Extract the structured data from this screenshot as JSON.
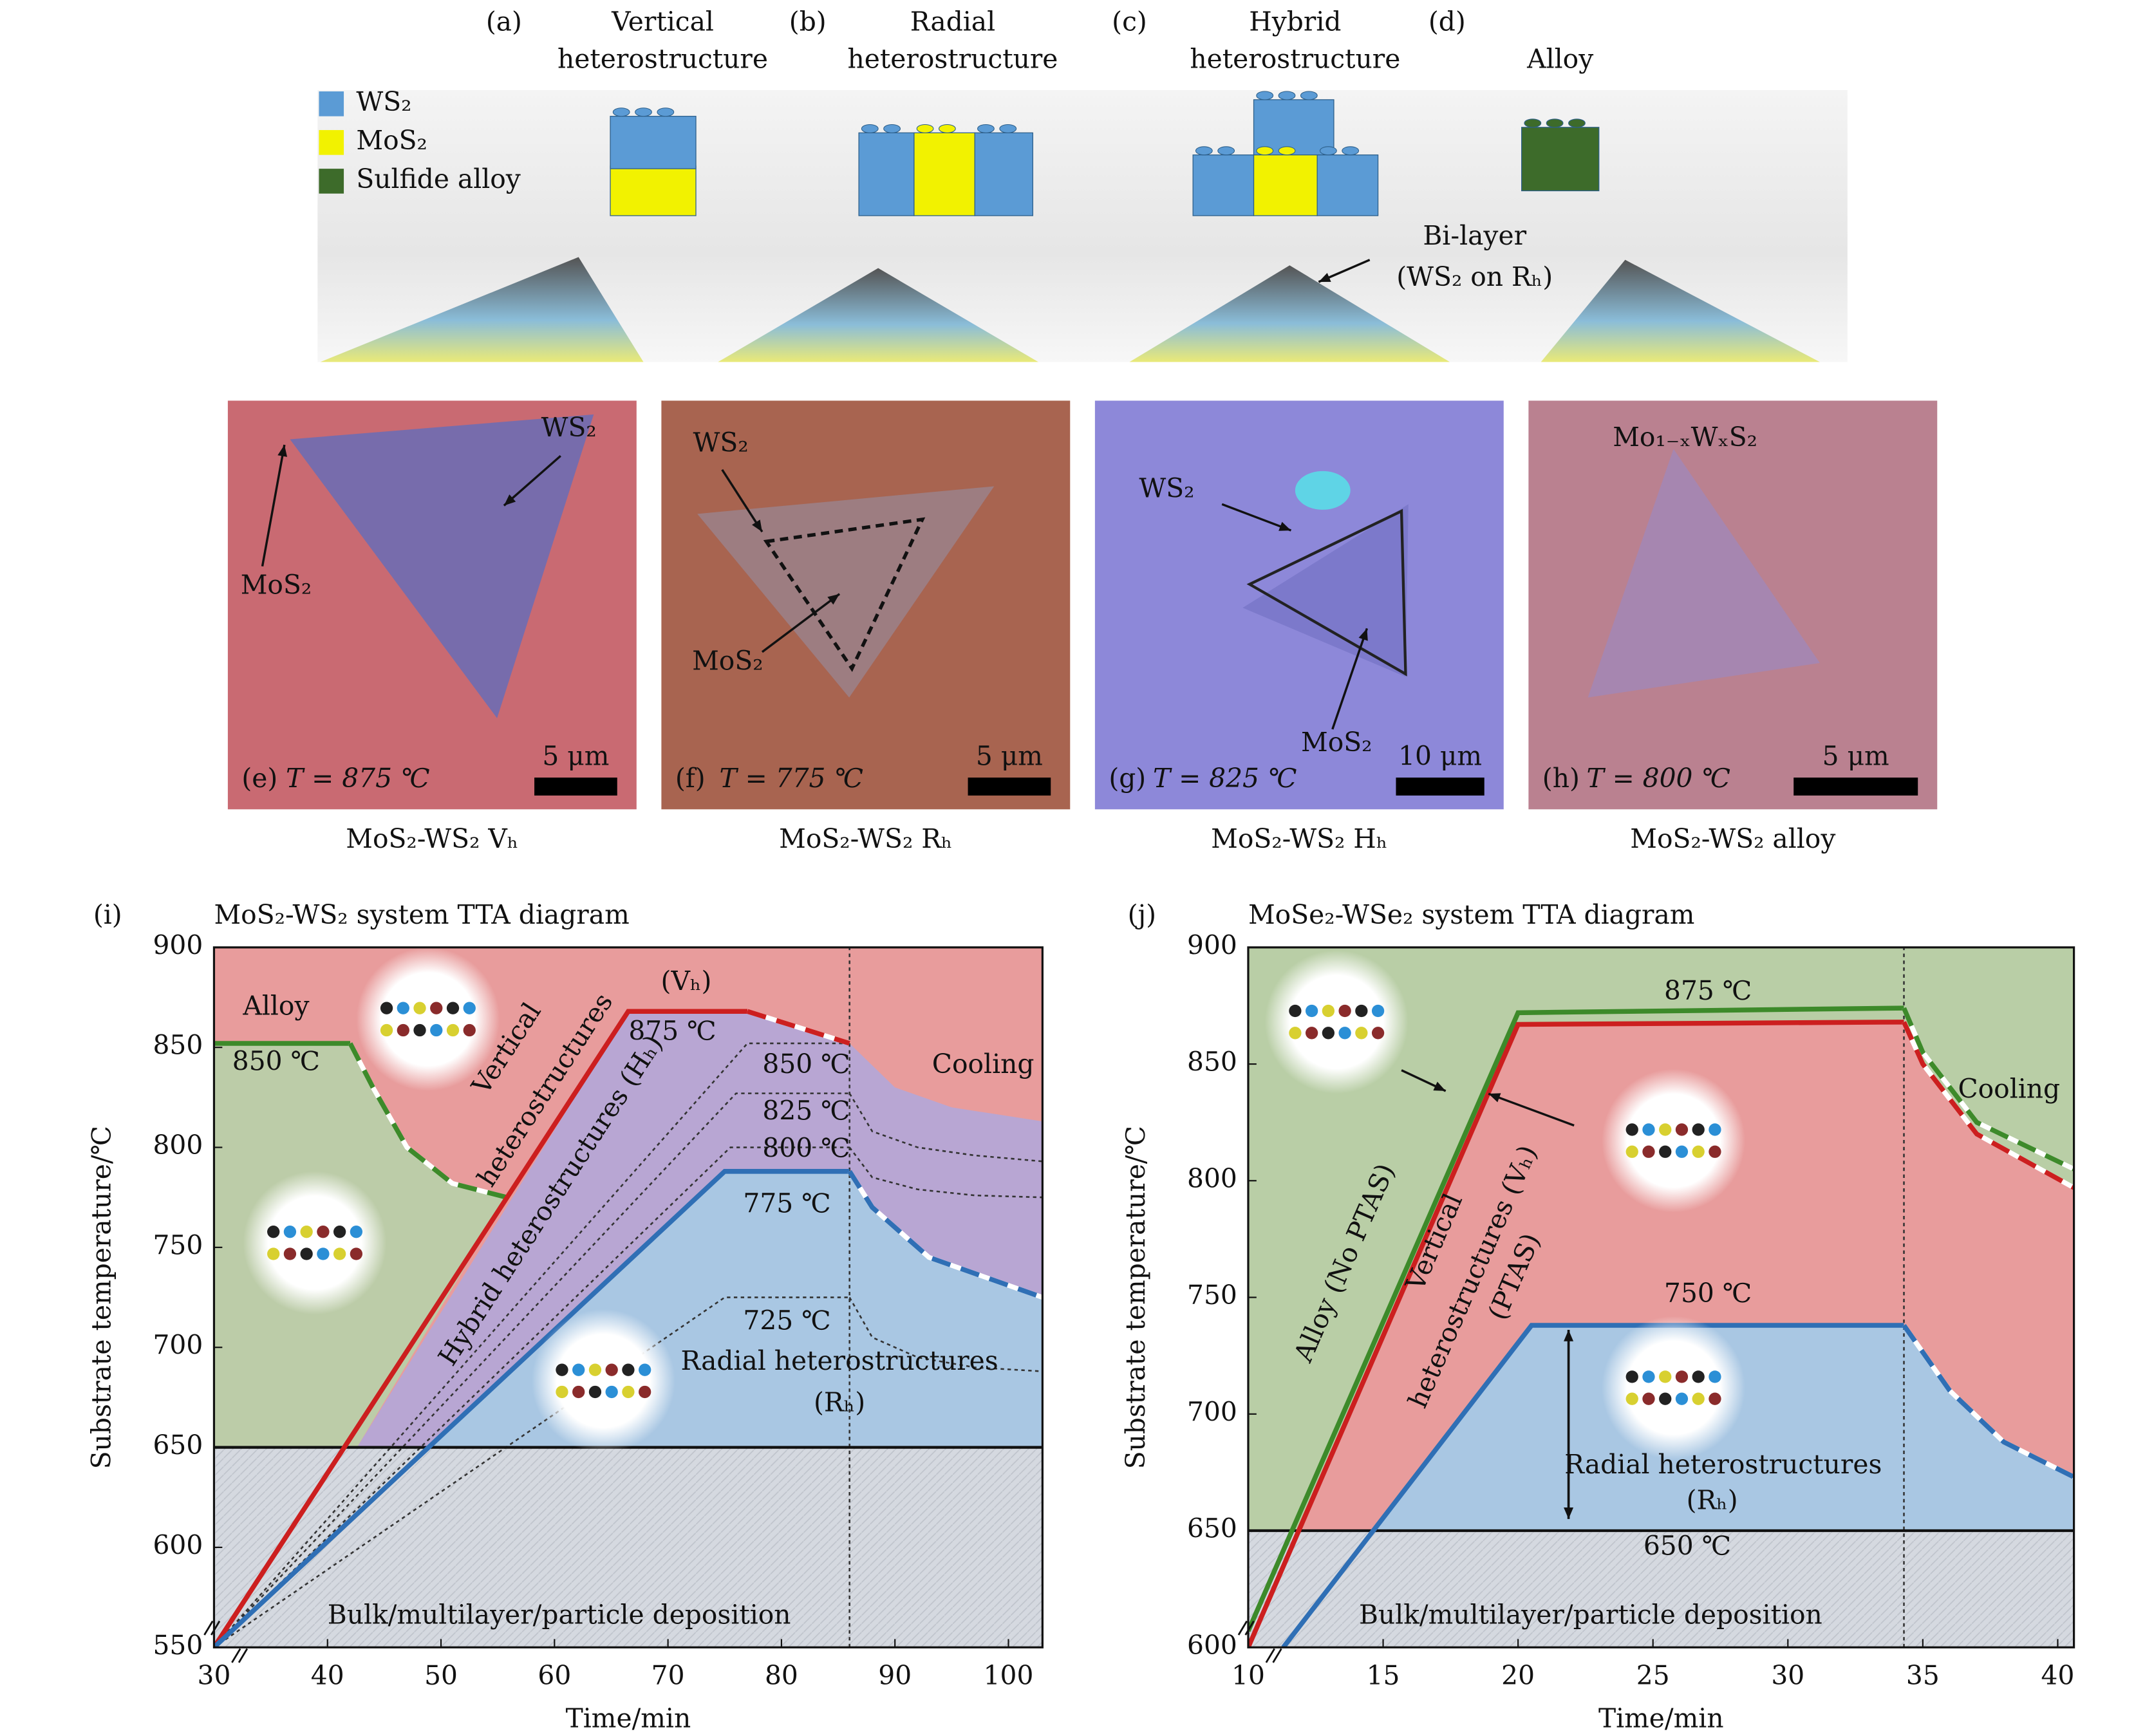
{
  "schematic": {
    "panels": [
      {
        "letter": "(a)",
        "title": [
          "Vertical",
          "heterostructure"
        ]
      },
      {
        "letter": "(b)",
        "title": [
          "Radial",
          "heterostructure"
        ]
      },
      {
        "letter": "(c)",
        "title": [
          "Hybrid",
          "heterostructure"
        ]
      },
      {
        "letter": "(d)",
        "title": [
          "Alloy"
        ]
      }
    ],
    "legend": [
      {
        "label": "WS₂",
        "color": "#5b9bd5"
      },
      {
        "label": "MoS₂",
        "color": "#f2f200"
      },
      {
        "label": "Sulfide alloy",
        "color": "#3d6b2a"
      }
    ],
    "annotation": [
      "Bi-layer",
      "(WS₂ on Rₕ)"
    ]
  },
  "micrographs": [
    {
      "panel": "(e)",
      "temperature": "T = 875 ℃",
      "scale": "5 μm",
      "caption": "MoS₂-WS₂ Vₕ",
      "labels": [
        "WS₂",
        "MoS₂"
      ]
    },
    {
      "panel": "(f)",
      "temperature": "T = 775 ℃",
      "scale": "5 μm",
      "caption": "MoS₂-WS₂ Rₕ",
      "labels": [
        "WS₂",
        "MoS₂"
      ]
    },
    {
      "panel": "(g)",
      "temperature": "T = 825 ℃",
      "scale": "10 μm",
      "caption": "MoS₂-WS₂ Hₕ",
      "labels": [
        "WS₂",
        "MoS₂"
      ]
    },
    {
      "panel": "(h)",
      "temperature": "T = 800 ℃",
      "scale": "5 μm",
      "caption": "MoS₂-WS₂ alloy",
      "labels": [
        "Mo₁₋ₓWₓS₂"
      ]
    }
  ],
  "chart_data": [
    {
      "type": "line",
      "label": "(i)",
      "title": "MoS₂-WS₂ system TTA diagram",
      "xlabel": "Time/min",
      "ylabel": "Substrate temperature/℃",
      "xlim": [
        30,
        103
      ],
      "ylim": [
        550,
        900
      ],
      "xticks": [
        30,
        40,
        50,
        60,
        70,
        80,
        90,
        100
      ],
      "yticks": [
        550,
        600,
        650,
        700,
        750,
        800,
        850,
        900
      ],
      "regions": [
        {
          "color": "#e89c9c",
          "x": [
            30,
            103,
            103,
            30
          ],
          "values": [
            650,
            650,
            900,
            900
          ]
        },
        {
          "color": "#bccca8",
          "x": [
            30,
            30,
            42,
            44,
            47,
            51,
            55.8,
            42.6
          ],
          "values": [
            650,
            852,
            852,
            830,
            800,
            782,
            775,
            650
          ]
        },
        {
          "color": "#b8a6d3",
          "x": [
            42.6,
            66.5,
            77,
            86,
            90,
            95,
            103,
            103,
            93,
            88,
            86,
            75,
            48.9
          ],
          "values": [
            650,
            868,
            868,
            852,
            830,
            820,
            813,
            725,
            745,
            770,
            788,
            788,
            650
          ]
        },
        {
          "color": "#a9c7e3",
          "x": [
            48.9,
            75,
            86,
            88,
            93,
            103,
            103
          ],
          "values": [
            650,
            788,
            788,
            770,
            745,
            725,
            650
          ]
        },
        {
          "color": "#d5d9e0",
          "x": [
            30,
            103,
            103,
            30
          ],
          "values": [
            550,
            550,
            650,
            650
          ]
        }
      ],
      "series": [
        {
          "color": "#333333",
          "style": "dotted",
          "x": [
            30,
            77,
            86
          ],
          "values": [
            550,
            852,
            852
          ]
        },
        {
          "color": "#333333",
          "style": "dotted",
          "x": [
            30,
            76,
            86
          ],
          "values": [
            550,
            827,
            827
          ]
        },
        {
          "color": "#333333",
          "style": "dotted",
          "x": [
            30,
            75.5,
            86
          ],
          "values": [
            550,
            800,
            800
          ]
        },
        {
          "color": "#333333",
          "style": "dotted",
          "x": [
            30,
            75,
            86
          ],
          "values": [
            550,
            725,
            725
          ]
        },
        {
          "color": "#333333",
          "style": "dotted",
          "x": [
            86,
            88,
            92,
            97,
            103
          ],
          "values": [
            827,
            808,
            800,
            796,
            793
          ]
        },
        {
          "color": "#333333",
          "style": "dotted",
          "x": [
            86,
            88,
            92,
            97,
            103
          ],
          "values": [
            800,
            785,
            779,
            776,
            775
          ]
        },
        {
          "color": "#333333",
          "style": "dotted",
          "x": [
            86,
            88,
            92,
            97,
            103
          ],
          "values": [
            725,
            705,
            695,
            690,
            688
          ]
        },
        {
          "color": "#333333",
          "style": "dotted",
          "x": [
            86,
            86
          ],
          "values": [
            550,
            900
          ]
        },
        {
          "color": "#111111",
          "style": "solid",
          "x": [
            30,
            103
          ],
          "values": [
            650,
            650
          ]
        },
        {
          "color": "#3d8a2a",
          "style": "solid",
          "x": [
            30,
            42
          ],
          "values": [
            852,
            852
          ]
        },
        {
          "color": "#3d8a2a",
          "style": "dashed",
          "x": [
            42,
            44,
            47,
            51,
            55.8
          ],
          "values": [
            852,
            830,
            800,
            782,
            775
          ]
        },
        {
          "color": "#cc1f1f",
          "style": "solid",
          "x": [
            30,
            66.5,
            77
          ],
          "values": [
            550,
            868,
            868
          ]
        },
        {
          "color": "#cc1f1f",
          "style": "dashed",
          "x": [
            77,
            86
          ],
          "values": [
            868,
            852
          ]
        },
        {
          "color": "#2f6fb5",
          "style": "solid",
          "x": [
            30,
            75,
            86
          ],
          "values": [
            550,
            788,
            788
          ]
        },
        {
          "color": "#2f6fb5",
          "style": "dashed",
          "x": [
            86,
            88,
            93,
            103
          ],
          "values": [
            788,
            770,
            745,
            725
          ]
        }
      ],
      "annotations": [
        "Alloy",
        "850 ℃",
        "Vertical",
        "heterostructures",
        "(Vₕ)",
        "875 ℃",
        "850 ℃",
        "825 ℃",
        "800 ℃",
        "775 ℃",
        "725 ℃",
        "Hybrid heterostructures (Hₕ)",
        "Cooling",
        "Radial heterostructures",
        "(Rₕ)",
        "Bulk/multilayer/particle deposition"
      ]
    },
    {
      "type": "line",
      "label": "(j)",
      "title": "MoSe₂-WSe₂ system TTA diagram",
      "xlabel": "Time/min",
      "ylabel": "Substrate temperature/℃",
      "xlim": [
        10,
        40.6
      ],
      "ylim": [
        600,
        900
      ],
      "xticks": [
        10,
        15,
        20,
        25,
        30,
        35,
        40
      ],
      "yticks": [
        600,
        650,
        700,
        750,
        800,
        850,
        900
      ],
      "regions": [
        {
          "color": "#b9cea6",
          "x": [
            10,
            40.6,
            40.6,
            10
          ],
          "values": [
            650,
            650,
            900,
            900
          ]
        },
        {
          "color": "#e89c9c",
          "x": [
            11.9,
            20,
            34.3,
            35,
            37,
            40.6,
            40.6
          ],
          "values": [
            650,
            867,
            868,
            850,
            820,
            797,
            650
          ]
        },
        {
          "color": "#a9c7e3",
          "x": [
            14.6,
            20.5,
            34.3,
            36,
            38,
            40.6,
            40.6
          ],
          "values": [
            650,
            738,
            738,
            710,
            688,
            673,
            650
          ]
        },
        {
          "color": "#d5d9e0",
          "x": [
            10,
            40.6,
            40.6,
            10
          ],
          "values": [
            600,
            600,
            650,
            650
          ]
        }
      ],
      "series": [
        {
          "color": "#333333",
          "style": "dotted",
          "x": [
            34.3,
            34.3
          ],
          "values": [
            600,
            900
          ]
        },
        {
          "color": "#111111",
          "style": "solid",
          "x": [
            10,
            40.6
          ],
          "values": [
            650,
            650
          ]
        },
        {
          "color": "#3d8a2a",
          "style": "solid",
          "x": [
            10,
            20,
            34.3
          ],
          "values": [
            607,
            872,
            874
          ]
        },
        {
          "color": "#3d8a2a",
          "style": "dashed",
          "x": [
            34.3,
            35,
            37,
            40.6
          ],
          "values": [
            874,
            855,
            825,
            805
          ]
        },
        {
          "color": "#cc1f1f",
          "style": "solid",
          "x": [
            10,
            20,
            34.3
          ],
          "values": [
            600,
            867,
            868
          ]
        },
        {
          "color": "#cc1f1f",
          "style": "dashed",
          "x": [
            34.3,
            35,
            37,
            40.6
          ],
          "values": [
            868,
            850,
            820,
            797
          ]
        },
        {
          "color": "#2f6fb5",
          "style": "solid",
          "x": [
            11.3,
            20.5,
            34.3
          ],
          "values": [
            600,
            738,
            738
          ]
        },
        {
          "color": "#2f6fb5",
          "style": "dashed",
          "x": [
            34.3,
            36,
            38,
            40.6
          ],
          "values": [
            738,
            710,
            688,
            673
          ]
        }
      ],
      "annotations": [
        "875 ℃",
        "Cooling",
        "Alloy (No PTAS)",
        "Vertical",
        "heterostructures (Vₕ)",
        "(PTAS)",
        "750 ℃",
        "Radial heterostructures",
        "(Rₕ)",
        "650 ℃",
        "Bulk/multilayer/particle deposition"
      ]
    }
  ]
}
